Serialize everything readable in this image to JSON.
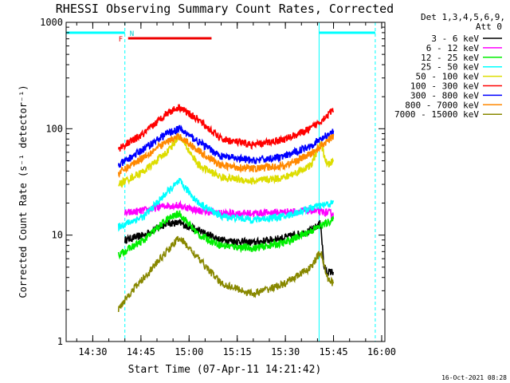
{
  "chart_data": {
    "type": "line",
    "title": "RHESSI Observing Summary Count Rates, Corrected",
    "xlabel": "Start Time (07-Apr-11 14:21:42)",
    "ylabel": "Corrected Count Rate (s⁻¹ detector⁻¹)",
    "y_scale": "log",
    "ylim": [
      1,
      1000
    ],
    "xlim": [
      "14:21:42",
      "16:01:00"
    ],
    "x_ticks": [
      "14:30",
      "14:45",
      "15:00",
      "15:15",
      "15:30",
      "15:45",
      "16:00"
    ],
    "y_ticks": [
      "1",
      "10",
      "100",
      "1000"
    ],
    "legend_position": "right",
    "legend_header": [
      "Det 1,3,4,5,6,9,",
      "Att 0"
    ],
    "footer_date": "16-Oct-2021 08:28",
    "flags": {
      "F": "F",
      "N": "N"
    },
    "series": [
      {
        "name": "3 - 6 keV",
        "color": "#000000",
        "points": [
          [
            "14:40",
            9
          ],
          [
            "14:46",
            10
          ],
          [
            "14:53",
            13
          ],
          [
            "14:57",
            13
          ],
          [
            "15:03",
            11
          ],
          [
            "15:10",
            9
          ],
          [
            "15:20",
            8.5
          ],
          [
            "15:30",
            9.5
          ],
          [
            "15:38",
            11
          ],
          [
            "15:41",
            13
          ],
          [
            "15:42",
            5
          ],
          [
            "15:43",
            4.5
          ],
          [
            "15:45",
            4.5
          ]
        ]
      },
      {
        "name": "6 - 12 keV",
        "color": "#ff00ff",
        "points": [
          [
            "14:40",
            16
          ],
          [
            "14:46",
            17
          ],
          [
            "14:53",
            19
          ],
          [
            "14:57",
            19
          ],
          [
            "15:03",
            17
          ],
          [
            "15:10",
            16
          ],
          [
            "15:20",
            16
          ],
          [
            "15:30",
            16.5
          ],
          [
            "15:38",
            17
          ],
          [
            "15:45",
            16
          ]
        ]
      },
      {
        "name": "12 - 25 keV",
        "color": "#00ee00",
        "points": [
          [
            "14:38",
            6.5
          ],
          [
            "14:46",
            9
          ],
          [
            "14:53",
            14
          ],
          [
            "14:57",
            16
          ],
          [
            "15:03",
            10
          ],
          [
            "15:10",
            8
          ],
          [
            "15:20",
            7.5
          ],
          [
            "15:30",
            8.5
          ],
          [
            "15:38",
            11
          ],
          [
            "15:45",
            14
          ]
        ]
      },
      {
        "name": "25 - 50 keV",
        "color": "#00ffff",
        "points": [
          [
            "14:38",
            12
          ],
          [
            "14:46",
            15
          ],
          [
            "14:53",
            25
          ],
          [
            "14:57",
            32
          ],
          [
            "15:03",
            20
          ],
          [
            "15:10",
            15
          ],
          [
            "15:20",
            14
          ],
          [
            "15:30",
            15
          ],
          [
            "15:38",
            18
          ],
          [
            "15:45",
            20
          ]
        ]
      },
      {
        "name": "50 - 100 keV",
        "color": "#dddd00",
        "points": [
          [
            "14:38",
            30
          ],
          [
            "14:46",
            40
          ],
          [
            "14:53",
            60
          ],
          [
            "14:57",
            85
          ],
          [
            "15:03",
            45
          ],
          [
            "15:10",
            35
          ],
          [
            "15:20",
            32
          ],
          [
            "15:30",
            35
          ],
          [
            "15:38",
            45
          ],
          [
            "15:41",
            75
          ],
          [
            "15:43",
            45
          ],
          [
            "15:45",
            50
          ]
        ]
      },
      {
        "name": "100 - 300 keV",
        "color": "#ff0000",
        "points": [
          [
            "14:38",
            65
          ],
          [
            "14:46",
            90
          ],
          [
            "14:53",
            140
          ],
          [
            "14:57",
            160
          ],
          [
            "15:03",
            120
          ],
          [
            "15:10",
            80
          ],
          [
            "15:20",
            70
          ],
          [
            "15:30",
            80
          ],
          [
            "15:38",
            100
          ],
          [
            "15:45",
            150
          ]
        ]
      },
      {
        "name": "300 - 800 keV",
        "color": "#0000ff",
        "points": [
          [
            "14:38",
            45
          ],
          [
            "14:46",
            65
          ],
          [
            "14:53",
            90
          ],
          [
            "14:57",
            100
          ],
          [
            "15:03",
            75
          ],
          [
            "15:10",
            55
          ],
          [
            "15:20",
            50
          ],
          [
            "15:30",
            55
          ],
          [
            "15:38",
            70
          ],
          [
            "15:45",
            95
          ]
        ]
      },
      {
        "name": "800 - 7000 keV",
        "color": "#ff8800",
        "points": [
          [
            "14:38",
            38
          ],
          [
            "14:46",
            55
          ],
          [
            "14:53",
            75
          ],
          [
            "14:57",
            85
          ],
          [
            "15:03",
            62
          ],
          [
            "15:10",
            45
          ],
          [
            "15:20",
            42
          ],
          [
            "15:30",
            45
          ],
          [
            "15:38",
            58
          ],
          [
            "15:45",
            85
          ]
        ]
      },
      {
        "name": "7000 - 15000 keV",
        "color": "#888800",
        "points": [
          [
            "14:38",
            2
          ],
          [
            "14:40",
            2.5
          ],
          [
            "14:46",
            4
          ],
          [
            "14:53",
            7
          ],
          [
            "14:57",
            9.5
          ],
          [
            "15:03",
            6
          ],
          [
            "15:10",
            3.5
          ],
          [
            "15:20",
            2.8
          ],
          [
            "15:30",
            3.5
          ],
          [
            "15:38",
            5
          ],
          [
            "15:41",
            7
          ],
          [
            "15:43",
            4
          ],
          [
            "15:45",
            3.5
          ]
        ]
      }
    ],
    "intervals": [
      {
        "label": "N",
        "kind": "night",
        "color": "#00ffff",
        "start": "14:21:42",
        "end": "14:40:00"
      },
      {
        "label": "N",
        "kind": "night",
        "color": "#00ffff",
        "start": "15:40:30",
        "end": "15:58:00"
      },
      {
        "label": "F",
        "kind": "flare",
        "color": "#ee0000",
        "start": "14:41:00",
        "end": "15:07:00"
      }
    ]
  }
}
